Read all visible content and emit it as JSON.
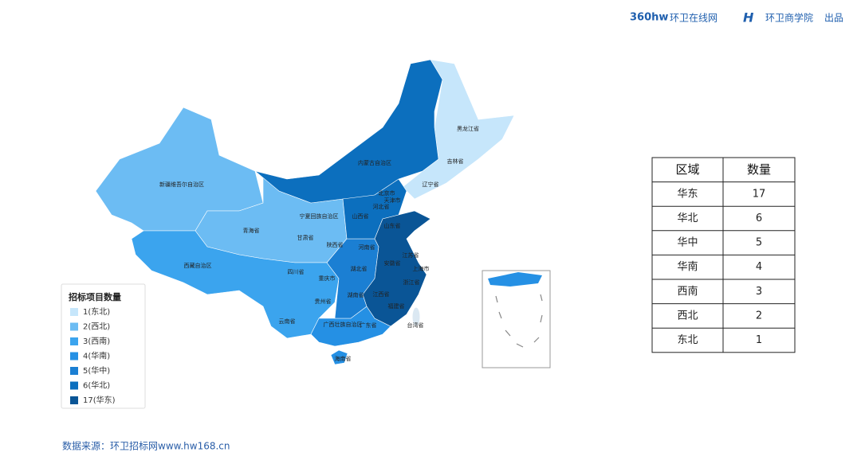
{
  "header": {
    "logo": "360hw",
    "site": "环卫在线网",
    "org": "环卫商学院",
    "suffix": "出品"
  },
  "map": {
    "legend": {
      "title": "招标项目数量",
      "items": [
        {
          "label": "1(东北)",
          "color": "#c6e6fb",
          "provinces": [
            "黑龙江省",
            "吉林省",
            "辽宁省"
          ]
        },
        {
          "label": "2(西北)",
          "color": "#6cbcf3",
          "provinces": [
            "新疆维吾尔自治区",
            "青海省",
            "甘肃省",
            "宁夏回族自治区",
            "陕西省"
          ]
        },
        {
          "label": "3(西南)",
          "color": "#3ba4ee",
          "provinces": [
            "西藏自治区",
            "四川省",
            "重庆市",
            "贵州省",
            "云南省"
          ]
        },
        {
          "label": "4(华南)",
          "color": "#2590e4",
          "provinces": [
            "广西壮族自治区",
            "广东省",
            "海南省"
          ]
        },
        {
          "label": "5(华中)",
          "color": "#1b7fd3",
          "provinces": [
            "河南省",
            "湖北省",
            "湖南省"
          ]
        },
        {
          "label": "6(华北)",
          "color": "#0c6fbe",
          "provinces": [
            "内蒙古自治区",
            "北京市",
            "天津市",
            "河北省",
            "山西省"
          ]
        },
        {
          "label": "17(华东)",
          "color": "#0a5596",
          "provinces": [
            "山东省",
            "江苏省",
            "安徽省",
            "上海市",
            "浙江省",
            "江西省",
            "福建省"
          ]
        }
      ]
    },
    "other_labels": [
      "台湾省"
    ]
  },
  "table": {
    "header": [
      "区域",
      "数量"
    ],
    "rows": [
      [
        "华东",
        "17"
      ],
      [
        "华北",
        "6"
      ],
      [
        "华中",
        "5"
      ],
      [
        "华南",
        "4"
      ],
      [
        "西南",
        "3"
      ],
      [
        "西北",
        "2"
      ],
      [
        "东北",
        "1"
      ]
    ]
  },
  "footer": "数据来源：环卫招标网www.hw168.cn"
}
